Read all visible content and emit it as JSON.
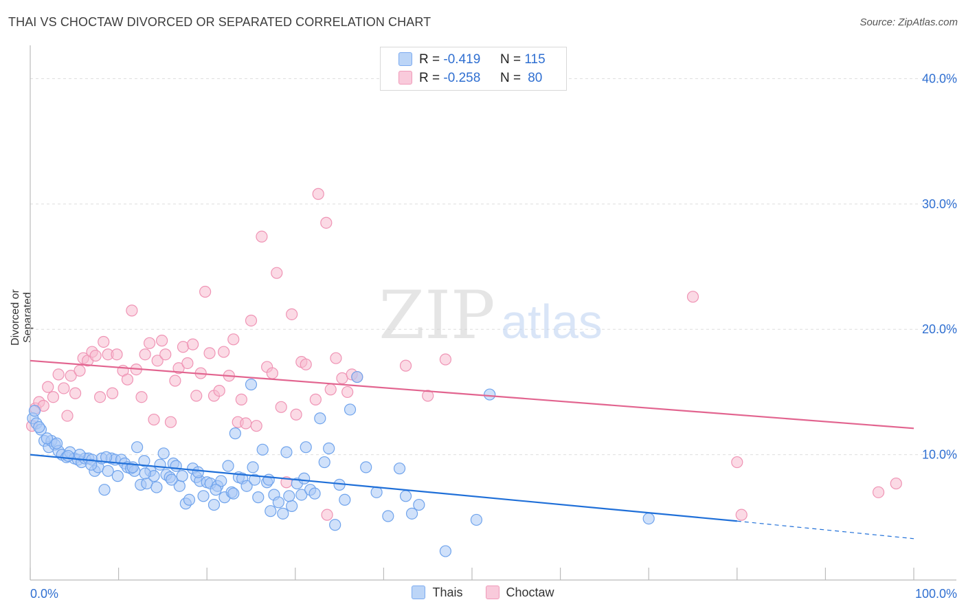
{
  "title": "THAI VS CHOCTAW DIVORCED OR SEPARATED CORRELATION CHART",
  "source": "Source: ZipAtlas.com",
  "watermark": {
    "zip": "ZIP",
    "atlas": "atlas"
  },
  "legend": {
    "r_label": "R =",
    "n_label": "N =",
    "rows": [
      {
        "r": "-0.419",
        "n": "115"
      },
      {
        "r": "-0.258",
        "n": "80"
      }
    ]
  },
  "bottom_legend": [
    "Thais",
    "Choctaw"
  ],
  "colors": {
    "thai_fill": "#a9c9f5",
    "thai_stroke": "#6fa3ec",
    "thai_line": "#1f6fd8",
    "choctaw_fill": "#f7bcd0",
    "choctaw_stroke": "#ef93b4",
    "choctaw_line": "#e2648f",
    "tick_label": "#2f6fd1",
    "grid": "#dedede"
  },
  "chart_data": {
    "type": "scatter",
    "title": "THAI VS CHOCTAW DIVORCED OR SEPARATED CORRELATION CHART",
    "xlabel": "",
    "ylabel": "Divorced or Separated",
    "xlim": [
      0,
      100
    ],
    "ylim": [
      0,
      42
    ],
    "x_tick_labels": [
      "0.0%",
      "100.0%"
    ],
    "y_ticks": [
      10,
      20,
      30,
      40
    ],
    "y_tick_labels": [
      "10.0%",
      "20.0%",
      "30.0%",
      "40.0%"
    ],
    "grid": true,
    "legend_position": "top-center",
    "series": [
      {
        "name": "Thais",
        "r": -0.419,
        "n": 115,
        "trend": {
          "x0": 0,
          "y0": 10.0,
          "x1": 80,
          "y1": 4.7,
          "dashed_to_x": 100,
          "dashed_to_y": 3.3
        },
        "points": [
          [
            0.3,
            12.9
          ],
          [
            0.7,
            12.5
          ],
          [
            1.2,
            12.0
          ],
          [
            1.6,
            11.1
          ],
          [
            2.1,
            10.6
          ],
          [
            2.4,
            11.1
          ],
          [
            2.8,
            10.8
          ],
          [
            3.2,
            10.3
          ],
          [
            3.6,
            10.0
          ],
          [
            4.1,
            9.8
          ],
          [
            4.5,
            10.2
          ],
          [
            5.0,
            9.7
          ],
          [
            5.4,
            9.6
          ],
          [
            5.8,
            9.4
          ],
          [
            6.2,
            9.7
          ],
          [
            6.6,
            9.7
          ],
          [
            7.0,
            9.6
          ],
          [
            7.3,
            8.7
          ],
          [
            7.7,
            9.0
          ],
          [
            8.1,
            9.7
          ],
          [
            8.4,
            7.2
          ],
          [
            8.8,
            8.7
          ],
          [
            9.2,
            9.7
          ],
          [
            9.6,
            9.6
          ],
          [
            9.9,
            8.3
          ],
          [
            10.3,
            9.6
          ],
          [
            10.7,
            9.3
          ],
          [
            11.0,
            9.0
          ],
          [
            11.4,
            8.9
          ],
          [
            11.8,
            8.7
          ],
          [
            12.1,
            10.6
          ],
          [
            12.5,
            7.6
          ],
          [
            12.9,
            9.5
          ],
          [
            13.2,
            7.7
          ],
          [
            13.6,
            8.7
          ],
          [
            14.0,
            8.3
          ],
          [
            14.3,
            7.4
          ],
          [
            14.7,
            9.2
          ],
          [
            15.1,
            10.1
          ],
          [
            15.4,
            8.4
          ],
          [
            15.8,
            8.2
          ],
          [
            16.2,
            9.3
          ],
          [
            16.5,
            9.1
          ],
          [
            16.9,
            7.5
          ],
          [
            17.2,
            8.3
          ],
          [
            17.6,
            6.1
          ],
          [
            18.0,
            6.4
          ],
          [
            18.4,
            8.9
          ],
          [
            18.8,
            8.2
          ],
          [
            19.2,
            7.9
          ],
          [
            19.6,
            6.7
          ],
          [
            20.0,
            7.8
          ],
          [
            20.4,
            7.7
          ],
          [
            20.8,
            6.0
          ],
          [
            21.2,
            7.5
          ],
          [
            21.6,
            7.9
          ],
          [
            22.0,
            6.6
          ],
          [
            22.4,
            9.1
          ],
          [
            22.8,
            7.0
          ],
          [
            23.2,
            11.7
          ],
          [
            23.6,
            8.2
          ],
          [
            24.0,
            8.1
          ],
          [
            24.5,
            7.5
          ],
          [
            25.0,
            15.6
          ],
          [
            25.4,
            8.0
          ],
          [
            25.8,
            6.6
          ],
          [
            26.3,
            10.4
          ],
          [
            26.8,
            7.8
          ],
          [
            27.2,
            5.5
          ],
          [
            27.6,
            6.8
          ],
          [
            28.1,
            6.2
          ],
          [
            28.6,
            5.3
          ],
          [
            29.0,
            10.2
          ],
          [
            29.6,
            5.9
          ],
          [
            30.2,
            7.7
          ],
          [
            30.7,
            6.8
          ],
          [
            31.2,
            10.6
          ],
          [
            31.7,
            7.2
          ],
          [
            32.2,
            6.9
          ],
          [
            32.8,
            12.9
          ],
          [
            33.3,
            9.4
          ],
          [
            33.8,
            10.5
          ],
          [
            34.5,
            4.4
          ],
          [
            35.0,
            7.6
          ],
          [
            35.6,
            6.4
          ],
          [
            36.2,
            13.6
          ],
          [
            37.0,
            16.2
          ],
          [
            38.0,
            9.0
          ],
          [
            39.2,
            7.0
          ],
          [
            40.5,
            5.1
          ],
          [
            41.8,
            8.9
          ],
          [
            42.5,
            6.7
          ],
          [
            43.2,
            5.3
          ],
          [
            44.0,
            6.0
          ],
          [
            47.0,
            2.3
          ],
          [
            50.5,
            4.8
          ],
          [
            52.0,
            14.8
          ],
          [
            70.0,
            4.9
          ],
          [
            0.5,
            13.5
          ],
          [
            1.0,
            12.2
          ],
          [
            1.9,
            11.3
          ],
          [
            3.0,
            10.9
          ],
          [
            4.3,
            9.9
          ],
          [
            5.6,
            10.0
          ],
          [
            6.9,
            9.2
          ],
          [
            8.6,
            9.8
          ],
          [
            11.6,
            9.0
          ],
          [
            13.0,
            8.5
          ],
          [
            16.0,
            8.0
          ],
          [
            19.0,
            8.6
          ],
          [
            21.0,
            7.2
          ],
          [
            23.0,
            6.9
          ],
          [
            25.2,
            9.0
          ],
          [
            27.0,
            8.0
          ],
          [
            29.3,
            6.7
          ],
          [
            31.0,
            8.1
          ]
        ]
      },
      {
        "name": "Choctaw",
        "r": -0.258,
        "n": 80,
        "trend": {
          "x0": 0,
          "y0": 17.5,
          "x1": 100,
          "y1": 12.1
        },
        "points": [
          [
            0.2,
            12.3
          ],
          [
            0.6,
            13.7
          ],
          [
            1.0,
            14.2
          ],
          [
            1.5,
            13.9
          ],
          [
            2.0,
            15.4
          ],
          [
            2.6,
            14.6
          ],
          [
            3.2,
            16.4
          ],
          [
            3.8,
            15.3
          ],
          [
            4.2,
            13.1
          ],
          [
            4.6,
            16.3
          ],
          [
            5.1,
            14.9
          ],
          [
            5.6,
            16.7
          ],
          [
            6.0,
            17.7
          ],
          [
            6.5,
            17.5
          ],
          [
            7.0,
            18.2
          ],
          [
            7.4,
            17.9
          ],
          [
            7.9,
            14.6
          ],
          [
            8.3,
            19.0
          ],
          [
            8.8,
            18.0
          ],
          [
            9.3,
            14.9
          ],
          [
            9.8,
            18.0
          ],
          [
            10.5,
            16.7
          ],
          [
            11.0,
            16.0
          ],
          [
            11.5,
            21.5
          ],
          [
            12.0,
            16.8
          ],
          [
            12.6,
            14.6
          ],
          [
            13.0,
            18.0
          ],
          [
            13.5,
            18.9
          ],
          [
            14.0,
            12.8
          ],
          [
            14.4,
            17.5
          ],
          [
            14.9,
            19.1
          ],
          [
            15.3,
            18.0
          ],
          [
            15.9,
            12.6
          ],
          [
            16.4,
            15.9
          ],
          [
            16.8,
            16.9
          ],
          [
            17.3,
            18.6
          ],
          [
            17.8,
            17.3
          ],
          [
            18.4,
            18.8
          ],
          [
            18.8,
            14.7
          ],
          [
            19.3,
            16.5
          ],
          [
            19.8,
            23.0
          ],
          [
            20.3,
            18.1
          ],
          [
            20.8,
            14.7
          ],
          [
            21.4,
            15.1
          ],
          [
            21.9,
            18.2
          ],
          [
            22.5,
            16.3
          ],
          [
            23.0,
            19.2
          ],
          [
            23.5,
            12.6
          ],
          [
            23.9,
            14.4
          ],
          [
            24.4,
            12.5
          ],
          [
            25.0,
            20.7
          ],
          [
            25.6,
            12.3
          ],
          [
            26.2,
            27.4
          ],
          [
            26.8,
            17.0
          ],
          [
            27.4,
            16.5
          ],
          [
            27.9,
            24.5
          ],
          [
            28.4,
            13.8
          ],
          [
            29.0,
            7.8
          ],
          [
            29.6,
            21.2
          ],
          [
            30.1,
            13.2
          ],
          [
            30.7,
            17.4
          ],
          [
            31.2,
            17.2
          ],
          [
            32.3,
            14.4
          ],
          [
            32.6,
            30.8
          ],
          [
            33.5,
            28.5
          ],
          [
            34.0,
            15.2
          ],
          [
            34.6,
            17.7
          ],
          [
            35.3,
            16.1
          ],
          [
            35.9,
            15.0
          ],
          [
            36.4,
            16.4
          ],
          [
            37.0,
            16.2
          ],
          [
            42.5,
            17.1
          ],
          [
            45.0,
            14.7
          ],
          [
            47.0,
            17.6
          ],
          [
            33.6,
            5.2
          ],
          [
            75.0,
            22.6
          ],
          [
            80.0,
            9.4
          ],
          [
            80.5,
            5.2
          ],
          [
            96.0,
            7.0
          ],
          [
            98.0,
            7.7
          ]
        ]
      }
    ]
  }
}
